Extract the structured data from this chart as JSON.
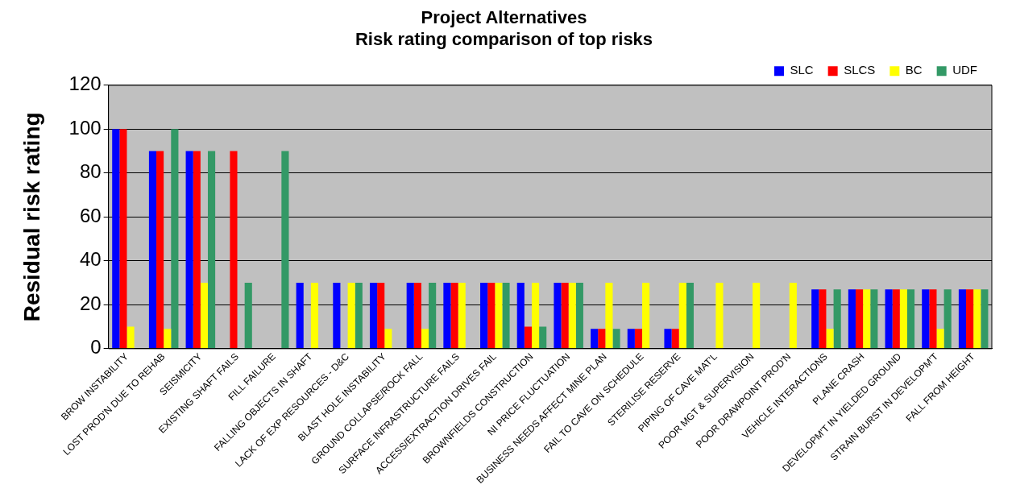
{
  "chart_data": {
    "type": "bar",
    "title": [
      "Project Alternatives",
      "Risk rating comparison of top risks"
    ],
    "ylabel": "Residual risk rating",
    "categories": [
      "BROW INSTABILITY",
      "LOST PROD'N DUE TO REHAB",
      "SEISMICITY",
      "EXISTING SHAFT FAILS",
      "FILL FAILURE",
      "FALLING OBJECTS IN SHAFT",
      "LACK OF EXP RESOURCES - D&C",
      "BLAST HOLE INSTABILITY",
      "GROUND COLLAPSE/ROCK FALL",
      "SURFACE INFRASTRUCTURE FAILS",
      "ACCESS/EXTRACTION DRIVES FAIL",
      "BROWNFIELDS CONSTRUCTION",
      "NI PRICE FLUCTUATION",
      "BUSINESS NEEDS AFFECT MINE PLAN",
      "FAIL TO CAVE ON SCHEDULE",
      "STERILISE RESERVE",
      "PIPING OF CAVE MAT'L",
      "POOR MGT & SUPERVISION",
      "POOR DRAWPOINT PROD'N",
      "VEHICLE INTERACTIONS",
      "PLANE CRASH",
      "DEVELOPM'T IN YIELDED GROUND",
      "STRAIN BURST IN DEVELOPM'T",
      "FALL FROM HEIGHT"
    ],
    "series": [
      {
        "name": "SLC",
        "color": "#0000ff",
        "values": [
          100,
          90,
          90,
          null,
          null,
          30,
          30,
          30,
          30,
          30,
          30,
          30,
          30,
          9,
          9,
          9,
          null,
          null,
          null,
          27,
          27,
          27,
          27,
          27
        ]
      },
      {
        "name": "SLCS",
        "color": "#ff0000",
        "values": [
          100,
          90,
          90,
          90,
          null,
          null,
          null,
          30,
          30,
          30,
          30,
          10,
          30,
          9,
          9,
          9,
          null,
          null,
          null,
          27,
          27,
          27,
          27,
          27
        ]
      },
      {
        "name": "BC",
        "color": "#ffff00",
        "values": [
          10,
          9,
          30,
          null,
          null,
          30,
          30,
          9,
          9,
          30,
          30,
          30,
          30,
          30,
          30,
          30,
          30,
          30,
          30,
          9,
          27,
          27,
          9,
          27
        ]
      },
      {
        "name": "UDF",
        "color": "#339966",
        "values": [
          null,
          100,
          90,
          30,
          90,
          null,
          30,
          null,
          30,
          null,
          30,
          10,
          30,
          9,
          null,
          30,
          null,
          null,
          null,
          27,
          27,
          27,
          27,
          27
        ]
      }
    ],
    "ylim": [
      0,
      120
    ],
    "yticks": [
      0,
      20,
      40,
      60,
      80,
      100,
      120
    ],
    "grid": "y",
    "legend": "top right"
  }
}
